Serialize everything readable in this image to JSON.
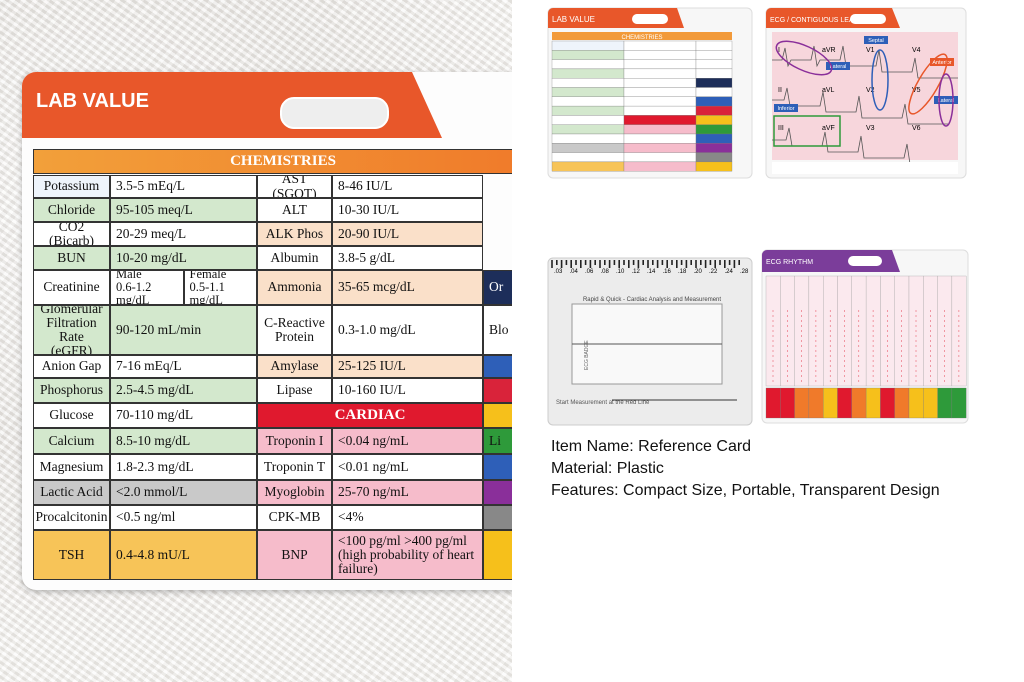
{
  "lab_card": {
    "title": "LAB VALUE",
    "chemistries": {
      "title": "CHEMISTRIES",
      "left_rows": [
        {
          "name": "Potassium",
          "value": "3.5-5 mEq/L"
        },
        {
          "name": "Chloride",
          "value": "95-105 meq/L"
        },
        {
          "name": "CO2 (Bicarb)",
          "value": "20-29 meq/L"
        },
        {
          "name": "BUN",
          "value": "10-20 mg/dL"
        },
        {
          "name": "Creatinine",
          "values": [
            {
              "label": "Male",
              "range": "0.6-1.2 mg/dL"
            },
            {
              "label": "Female",
              "range": "0.5-1.1 mg/dL"
            }
          ]
        },
        {
          "name": "Glomerular Filtration Rate (eGFR)",
          "value": "90-120 mL/min"
        },
        {
          "name": "Anion Gap",
          "value": "7-16 mEq/L"
        },
        {
          "name": "Phosphorus",
          "value": "2.5-4.5 mg/dL"
        },
        {
          "name": "Glucose",
          "value": "70-110 mg/dL"
        },
        {
          "name": "Calcium",
          "value": "8.5-10 mg/dL"
        },
        {
          "name": "Magnesium",
          "value": "1.8-2.3 mg/dL"
        },
        {
          "name": "Lactic Acid",
          "value": "<2.0 mmol/L"
        },
        {
          "name": "Procalcitonin",
          "value": "<0.5 ng/ml"
        },
        {
          "name": "TSH",
          "value": "0.4-4.8 mU/L"
        }
      ],
      "right_rows": [
        {
          "name": "AST (SGOT)",
          "value": "8-46 IU/L"
        },
        {
          "name": "ALT",
          "value": "10-30 IU/L"
        },
        {
          "name": "ALK Phos",
          "value": "20-90 IU/L"
        },
        {
          "name": "Albumin",
          "value": "3.8-5 g/dL"
        },
        {
          "name": "Ammonia",
          "value": "35-65 mcg/dL"
        },
        {
          "name": "C-Reactive Protein",
          "value": "0.3-1.0 mg/dL"
        },
        {
          "name": "Amylase",
          "value": "25-125 IU/L"
        },
        {
          "name": "Lipase",
          "value": "10-160 IU/L"
        }
      ]
    },
    "cardiac": {
      "title": "CARDIAC",
      "rows": [
        {
          "name": "Troponin I",
          "value": "<0.04 ng/mL"
        },
        {
          "name": "Troponin T",
          "value": "<0.01 ng/mL"
        },
        {
          "name": "Myoglobin",
          "value": "25-70 ng/mL"
        },
        {
          "name": "CPK-MB",
          "value": "<4%"
        },
        {
          "name": "BNP",
          "value": "<100 pg/ml >400 pg/ml (high probability of heart failure)"
        }
      ]
    },
    "extra_column": [
      "Or",
      "Blo",
      "Li"
    ]
  },
  "thumbnails": {
    "lab_value": {
      "title": "LAB VALUE",
      "header": "CHEMISTRIES"
    },
    "ecg_leads": {
      "title": "ECG / CONTIGUOUS LEADS",
      "leads": [
        "I",
        "aVR",
        "V1",
        "V4",
        "II",
        "aVL",
        "V2",
        "V5",
        "III",
        "aVF",
        "V3",
        "V6"
      ],
      "regions": [
        "Septal",
        "Anterior",
        "Lateral",
        "Inferior",
        "Lateral"
      ]
    },
    "ecg_badge": {
      "scale": [
        ".03",
        ".04",
        ".06",
        ".08",
        ".10",
        ".12",
        ".14",
        ".16",
        ".18",
        ".20",
        ".22",
        ".24",
        ".28"
      ],
      "title": "ECG BADGE",
      "subtitle": "Rapid & Quick - Cardiac Analysis and Measurement",
      "start": "Start Measurement at the Red Line"
    },
    "ecg_rhythm": {
      "title": "ECG RHYTHM"
    }
  },
  "item_details": [
    "Item Name: Reference Card",
    "Material: Plastic",
    "Features: Compact Size, Portable, Transparent Design"
  ]
}
